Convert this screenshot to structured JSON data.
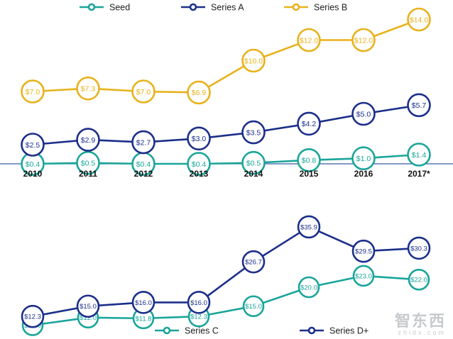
{
  "colors": {
    "seed": "#1aa59a",
    "series_a": "#1c2f8a",
    "series_b": "#e8b21c",
    "series_c": "#1aa59a",
    "series_d": "#1c2f8a",
    "baseline": "#3a5aa8"
  },
  "watermark": {
    "logo_text": "智东西",
    "url_text": "zhidx.com"
  },
  "chart_data": [
    {
      "type": "line",
      "title": "",
      "xlabel": "",
      "ylabel": "",
      "x": [
        "2010",
        "2011",
        "2012",
        "2013",
        "2014",
        "2015",
        "2016",
        "2017*"
      ],
      "legend_position": "top",
      "series": [
        {
          "name": "Seed",
          "key": "seed",
          "values": [
            0.4,
            0.5,
            0.4,
            0.4,
            0.5,
            0.8,
            1.0,
            1.4
          ],
          "labels": [
            "$0.4",
            "$0.5",
            "$0.4",
            "$0.4",
            "$0.5",
            "$0.8",
            "$1.0",
            "$1.4"
          ]
        },
        {
          "name": "Series A",
          "key": "series_a",
          "values": [
            2.5,
            2.9,
            2.7,
            3.0,
            3.5,
            4.2,
            5.0,
            5.7
          ],
          "labels": [
            "$2.5",
            "$2.9",
            "$2.7",
            "$3.0",
            "$3.5",
            "$4.2",
            "$5.0",
            "$5.7"
          ]
        },
        {
          "name": "Series B",
          "key": "series_b",
          "values": [
            7.0,
            7.3,
            7.0,
            6.9,
            10.0,
            12.0,
            12.0,
            14.0
          ],
          "labels": [
            "$7.0",
            "$7.3",
            "$7.0",
            "$6.9",
            "$10.0",
            "$12.0",
            "$12.0",
            "$14.0"
          ]
        }
      ]
    },
    {
      "type": "line",
      "title": "",
      "xlabel": "",
      "ylabel": "",
      "x": [
        "2010",
        "2011",
        "2012",
        "2013",
        "2014",
        "2015",
        "2016",
        "2017*"
      ],
      "legend_position": "bottom",
      "series": [
        {
          "name": "Series C",
          "key": "series_c",
          "values": [
            10.0,
            12.0,
            11.8,
            12.3,
            15.0,
            20.0,
            23.0,
            22.0
          ],
          "labels": [
            "$10.0",
            "$12.0",
            "$11.8",
            "$12.3",
            "$15.0",
            "$20.0",
            "$23.0",
            "$22.0"
          ]
        },
        {
          "name": "Series D+",
          "key": "series_d",
          "values": [
            12.3,
            15.0,
            16.0,
            16.0,
            26.7,
            35.9,
            29.5,
            30.3
          ],
          "labels": [
            "$12.3",
            "$15.0",
            "$16.0",
            "$16.0",
            "$26.7",
            "$35.9",
            "$29.5",
            "$30.3"
          ]
        }
      ]
    }
  ]
}
